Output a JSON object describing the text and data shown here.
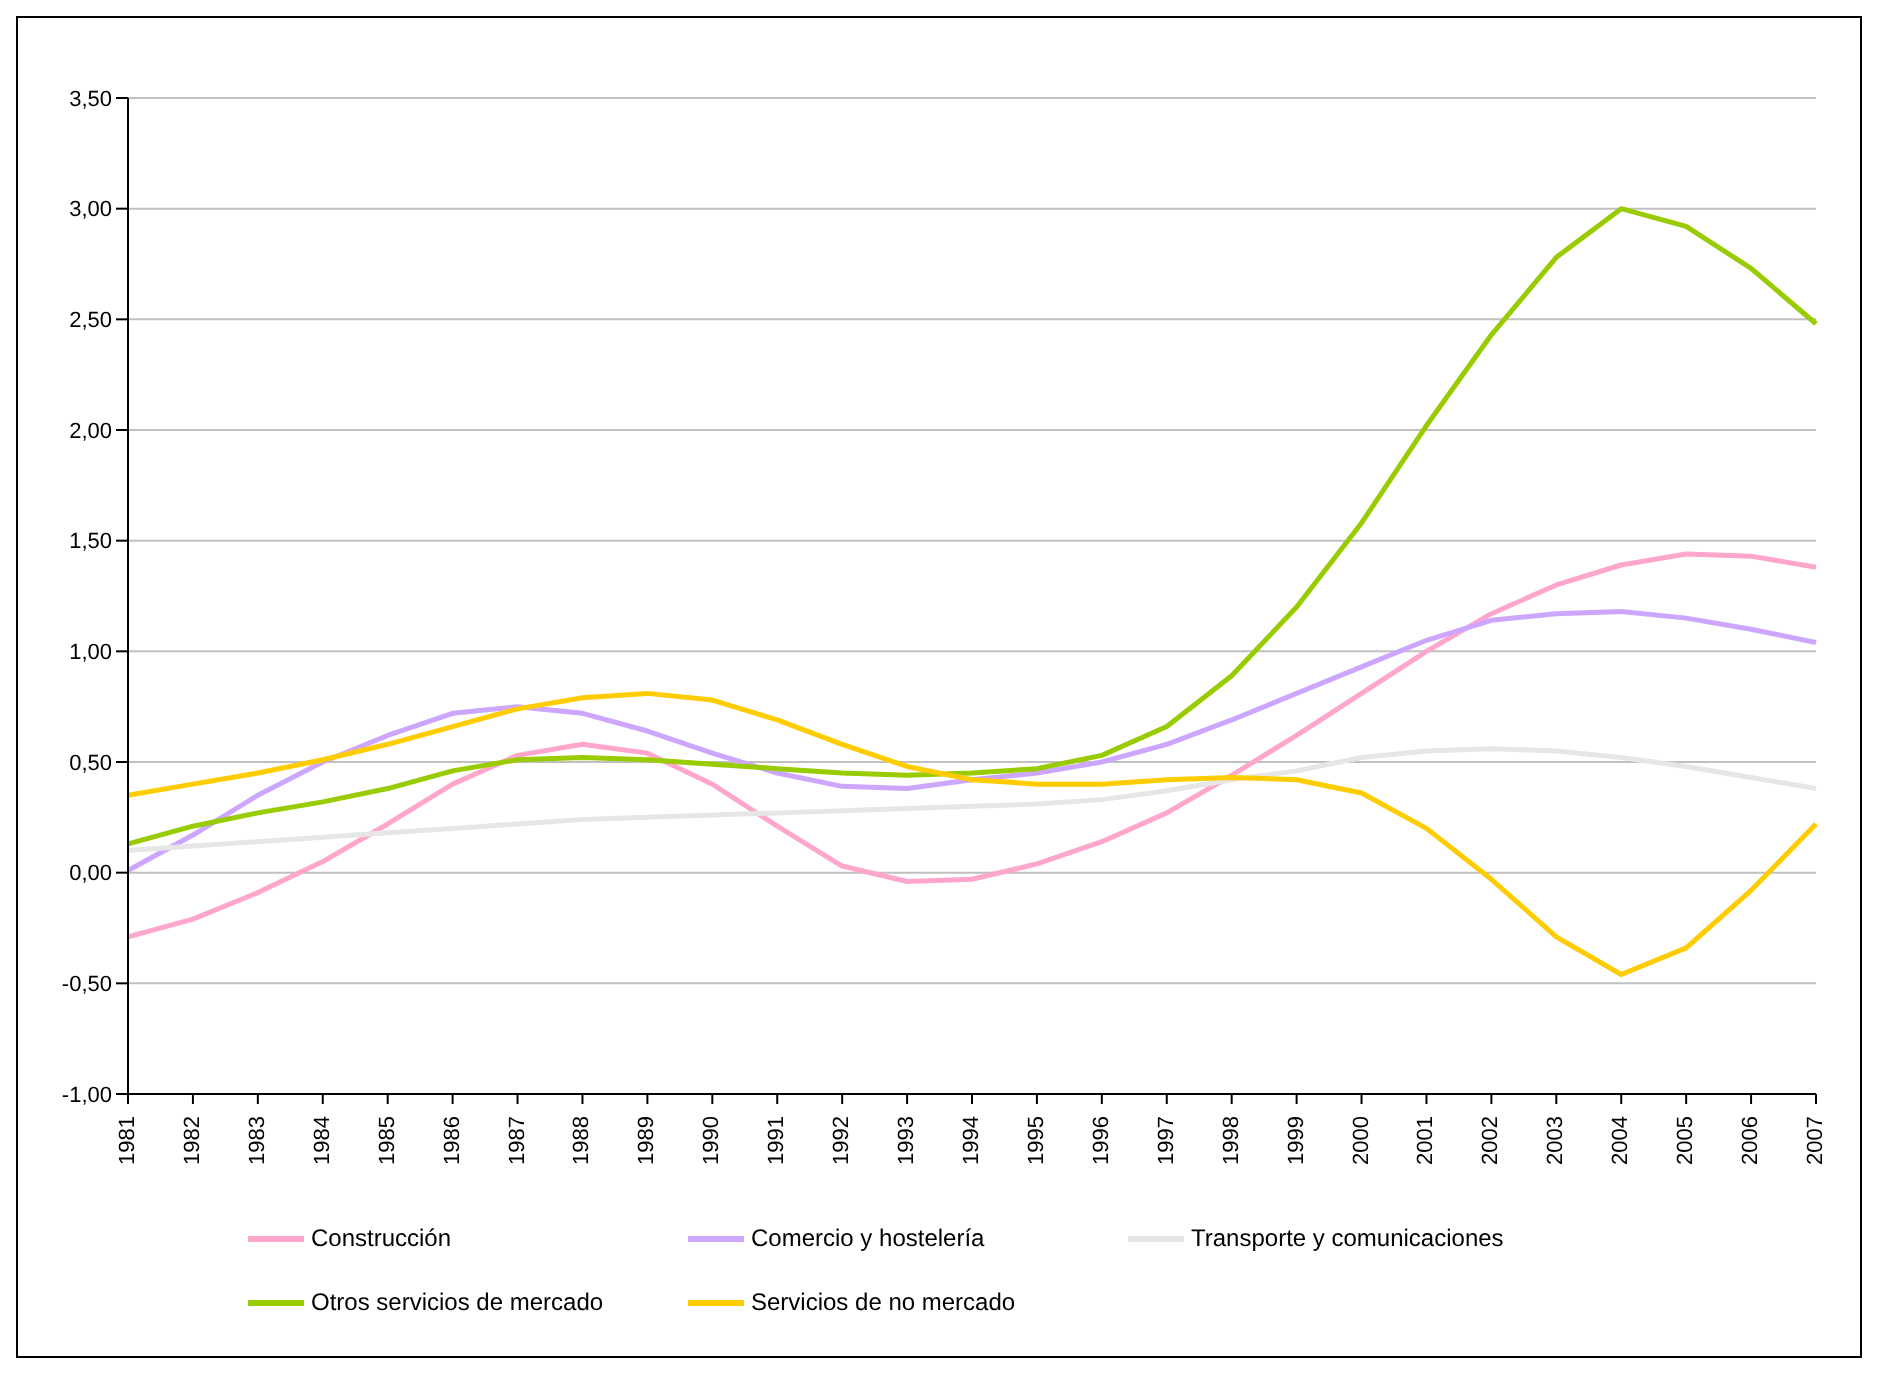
{
  "chart_data": {
    "type": "line",
    "categories": [
      "1981",
      "1982",
      "1983",
      "1984",
      "1985",
      "1986",
      "1987",
      "1988",
      "1989",
      "1990",
      "1991",
      "1992",
      "1993",
      "1994",
      "1995",
      "1996",
      "1997",
      "1998",
      "1999",
      "2000",
      "2001",
      "2002",
      "2003",
      "2004",
      "2005",
      "2006",
      "2007"
    ],
    "series": [
      {
        "name": "Construcción",
        "color": "#ffa6cc",
        "values": [
          -0.29,
          -0.21,
          -0.09,
          0.05,
          0.22,
          0.4,
          0.53,
          0.58,
          0.54,
          0.4,
          0.21,
          0.03,
          -0.04,
          -0.03,
          0.04,
          0.14,
          0.27,
          0.44,
          0.62,
          0.81,
          1.0,
          1.17,
          1.3,
          1.39,
          1.44,
          1.43,
          1.38
        ]
      },
      {
        "name": "Comercio y hostelería",
        "color": "#cca6ff",
        "values": [
          0.01,
          0.17,
          0.35,
          0.5,
          0.62,
          0.72,
          0.75,
          0.72,
          0.64,
          0.54,
          0.45,
          0.39,
          0.38,
          0.42,
          0.45,
          0.5,
          0.58,
          0.69,
          0.81,
          0.93,
          1.05,
          1.14,
          1.17,
          1.18,
          1.15,
          1.1,
          1.04
        ]
      },
      {
        "name": "Transporte y comunicaciones",
        "color": "#e6e6e6",
        "values": [
          0.1,
          0.12,
          0.14,
          0.16,
          0.18,
          0.2,
          0.22,
          0.24,
          0.25,
          0.26,
          0.27,
          0.28,
          0.29,
          0.3,
          0.31,
          0.33,
          0.37,
          0.42,
          0.46,
          0.52,
          0.55,
          0.56,
          0.55,
          0.52,
          0.48,
          0.43,
          0.38
        ]
      },
      {
        "name": "Otros servicios de mercado",
        "color": "#99cc00",
        "values": [
          0.13,
          0.21,
          0.27,
          0.32,
          0.38,
          0.46,
          0.51,
          0.52,
          0.51,
          0.49,
          0.47,
          0.45,
          0.44,
          0.45,
          0.47,
          0.53,
          0.66,
          0.89,
          1.2,
          1.58,
          2.02,
          2.43,
          2.78,
          3.0,
          2.92,
          2.73,
          2.48
        ]
      },
      {
        "name": "Servicios de no mercado",
        "color": "#ffcc00",
        "values": [
          0.35,
          0.4,
          0.45,
          0.51,
          0.58,
          0.66,
          0.74,
          0.79,
          0.81,
          0.78,
          0.69,
          0.58,
          0.48,
          0.42,
          0.4,
          0.4,
          0.42,
          0.43,
          0.42,
          0.36,
          0.2,
          -0.03,
          -0.29,
          -0.46,
          -0.34,
          -0.08,
          0.22
        ]
      }
    ],
    "ylim": [
      -1,
      3.5
    ],
    "yticks": [
      {
        "value": -1,
        "label": "-1,00"
      },
      {
        "value": -0.5,
        "label": "-0,50"
      },
      {
        "value": 0,
        "label": "0,00"
      },
      {
        "value": 0.5,
        "label": "0,50"
      },
      {
        "value": 1,
        "label": "1,00"
      },
      {
        "value": 1.5,
        "label": "1,50"
      },
      {
        "value": 2,
        "label": "2,00"
      },
      {
        "value": 2.5,
        "label": "2,50"
      },
      {
        "value": 3,
        "label": "3,00"
      },
      {
        "value": 3.5,
        "label": "3,50"
      }
    ],
    "grid": "y",
    "legend": "bottom",
    "marker": "none",
    "line_style": "solid"
  }
}
